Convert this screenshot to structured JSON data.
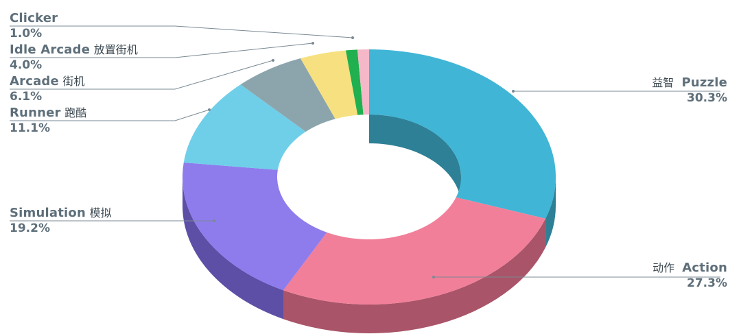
{
  "chart_data": {
    "type": "pie",
    "style": "3d-donut",
    "slices": [
      {
        "en": "Puzzle",
        "zh": "益智",
        "value": 30.3,
        "value_label": "30.3%",
        "color": "#40b5d6",
        "side_color": "#2e8096"
      },
      {
        "en": "Action",
        "zh": "动作",
        "value": 27.3,
        "value_label": "27.3%",
        "color": "#f27f99",
        "side_color": "#a95468"
      },
      {
        "en": "Simulation",
        "zh": "模拟",
        "value": 19.2,
        "value_label": "19.2%",
        "color": "#8e7ced",
        "side_color": "#5d4fa6"
      },
      {
        "en": "Runner",
        "zh": "跑酷",
        "value": 11.1,
        "value_label": "11.1%",
        "color": "#6fcfe8",
        "side_color": "#4a8fa1"
      },
      {
        "en": "Arcade",
        "zh": "街机",
        "value": 6.1,
        "value_label": "6.1%",
        "color": "#8ca5ad",
        "side_color": "#5e7178"
      },
      {
        "en": "Idle Arcade",
        "zh": "放置街机",
        "value": 4.0,
        "value_label": "4.0%",
        "color": "#f7e07f",
        "side_color": "#b59f4c"
      },
      {
        "en": "Clicker",
        "zh": "",
        "value": 1.0,
        "value_label": "1.0%",
        "color": "#21b050",
        "side_color": "#137a34"
      },
      {
        "en": "",
        "zh": "",
        "value": 1.0,
        "value_label": "",
        "color": "#f4b8c8",
        "side_color": "#b07f8d"
      }
    ],
    "leader_line_color": "#7a8a94",
    "label_color": "#5e6f7a"
  }
}
